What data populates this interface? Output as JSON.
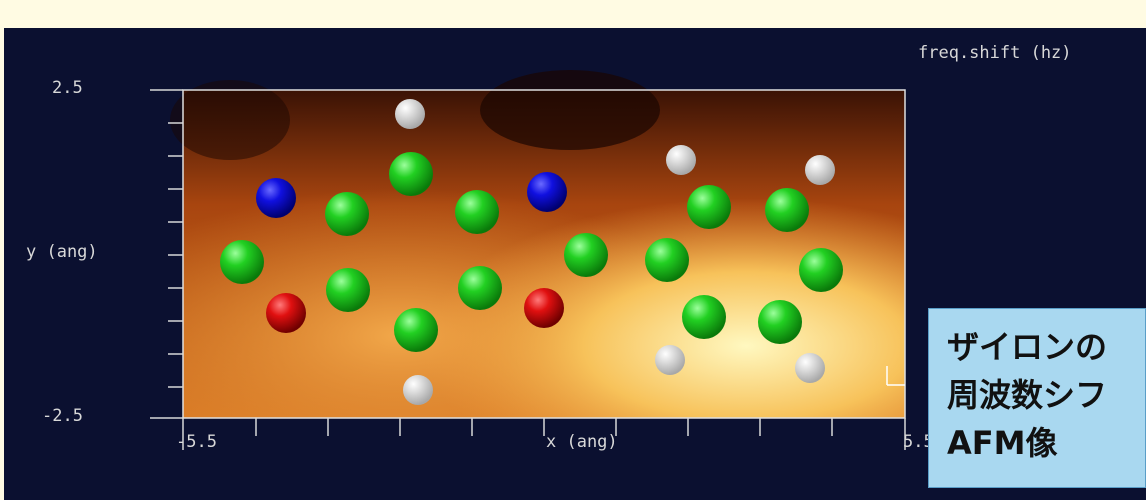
{
  "plot": {
    "legend_title": "freq.shift (hz)",
    "y_axis_label": "y (ang)",
    "x_axis_label": "x (ang)",
    "y_ticks": [
      "2.5",
      "-2.5"
    ],
    "x_ticks": [
      "-5.5",
      "5.5"
    ]
  },
  "callout": {
    "lines": [
      "ザイロンの",
      "周波数シフ",
      "AFM像"
    ]
  }
}
